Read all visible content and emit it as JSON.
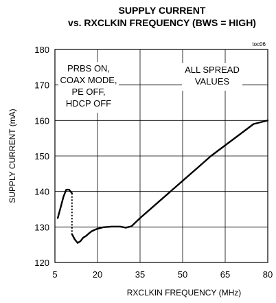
{
  "chart_data": {
    "type": "line",
    "title_line1": "SUPPLY CURRENT",
    "title_line2": "vs. RXCLKIN FREQUENCY (BWS = HIGH)",
    "figure_code": "toc06",
    "xlabel": "RXCLKIN FREQUENCY (MHz)",
    "ylabel": "SUPPLY CURRENT (mA)",
    "xlim": [
      5,
      80
    ],
    "ylim": [
      120,
      180
    ],
    "xticks": [
      "5",
      "20",
      "35",
      "50",
      "65",
      "80"
    ],
    "yticks": [
      "120",
      "130",
      "140",
      "150",
      "160",
      "170",
      "180"
    ],
    "grid": true,
    "annotation_left": [
      "PRBS ON,",
      "COAX MODE,",
      "PE OFF,",
      "HDCP OFF"
    ],
    "annotation_right": [
      "ALL SPREAD",
      "VALUES"
    ],
    "series": [
      {
        "segment": "low-frequency",
        "x": [
          6,
          7,
          8,
          9,
          10,
          11
        ],
        "y": [
          132.5,
          135.5,
          138.5,
          140.5,
          140.5,
          139.5
        ]
      },
      {
        "segment": "high-frequency",
        "x": [
          11,
          12,
          13,
          14,
          15,
          16,
          17,
          18,
          19,
          20,
          22,
          25,
          28,
          30,
          32,
          35,
          40,
          45,
          50,
          55,
          60,
          65,
          70,
          75,
          80
        ],
        "y": [
          128,
          126.5,
          125.5,
          126,
          127,
          127.5,
          128.2,
          128.8,
          129.2,
          129.5,
          129.9,
          130.1,
          130.1,
          129.8,
          130.2,
          132.5,
          136,
          139.5,
          143,
          146.5,
          150,
          153,
          156,
          159,
          160
        ]
      }
    ],
    "discontinuity": {
      "x": 11,
      "y_from": 139.5,
      "y_to": 128,
      "style": "dotted"
    }
  }
}
